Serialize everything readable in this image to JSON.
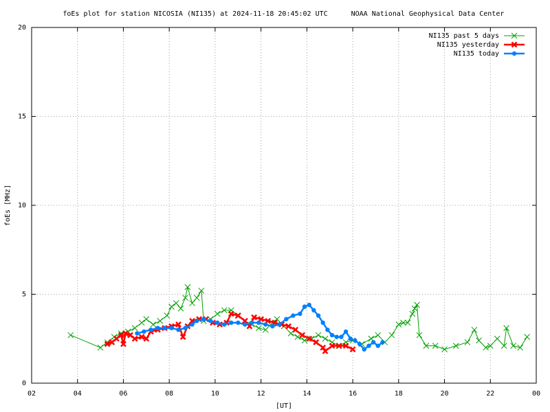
{
  "chart_data": {
    "type": "line",
    "title": "foEs plot for station NICOSIA (NI135) at 2024-11-18 20:45:02 UTC",
    "subtitle": "NOAA National Geophysical Data Center",
    "xlabel": "[UT]",
    "ylabel": "foEs [MHz]",
    "xlim": [
      2,
      24
    ],
    "xticks": [
      {
        "value": 2,
        "label": "02"
      },
      {
        "value": 4,
        "label": "04"
      },
      {
        "value": 6,
        "label": "06"
      },
      {
        "value": 8,
        "label": "08"
      },
      10,
      12,
      14,
      16,
      18,
      20,
      22,
      {
        "value": 24,
        "label": "00"
      }
    ],
    "ylim": [
      0,
      20
    ],
    "yticks": [
      0,
      5,
      10,
      15,
      20
    ],
    "grid": true,
    "legend": "top right",
    "series": [
      {
        "name": "NI135 past 5 days",
        "color": "#00a000",
        "marker": "x",
        "x": [
          3.7,
          5.0,
          5.3,
          5.6,
          5.9,
          6.2,
          6.5,
          6.8,
          7.0,
          7.3,
          7.6,
          7.9,
          8.1,
          8.3,
          8.5,
          8.7,
          8.8,
          9.0,
          9.2,
          9.4,
          9.5,
          9.8,
          10.1,
          10.4,
          10.7,
          11.0,
          11.3,
          11.6,
          11.9,
          12.2,
          12.5,
          12.7,
          13.0,
          13.3,
          13.6,
          13.9,
          14.2,
          14.5,
          14.8,
          15.1,
          15.4,
          15.7,
          16.0,
          16.4,
          16.8,
          17.1,
          17.4,
          17.7,
          18.0,
          18.2,
          18.4,
          18.6,
          18.7,
          18.8,
          18.9,
          19.2,
          19.6,
          20.0,
          20.5,
          21.0,
          21.3,
          21.5,
          21.8,
          22.0,
          22.3,
          22.6,
          22.7,
          23.0,
          23.3,
          23.6
        ],
        "values": [
          2.7,
          2.0,
          2.3,
          2.6,
          2.8,
          2.9,
          3.1,
          3.4,
          3.6,
          3.3,
          3.5,
          3.8,
          4.3,
          4.5,
          4.2,
          4.8,
          5.4,
          4.5,
          4.8,
          5.2,
          3.5,
          3.6,
          3.9,
          4.1,
          4.1,
          3.8,
          3.5,
          3.3,
          3.1,
          3.0,
          3.4,
          3.6,
          3.2,
          2.8,
          2.6,
          2.4,
          2.5,
          2.7,
          2.5,
          2.3,
          2.1,
          2.3,
          2.4,
          2.2,
          2.5,
          2.7,
          2.3,
          2.7,
          3.3,
          3.4,
          3.4,
          3.9,
          4.2,
          4.4,
          2.7,
          2.1,
          2.1,
          1.9,
          2.1,
          2.3,
          3.0,
          2.4,
          2.0,
          2.1,
          2.5,
          2.1,
          3.1,
          2.1,
          2.0,
          2.6
        ]
      },
      {
        "name": "NI135 yesterday",
        "color": "#ff0000",
        "marker": "X",
        "x": [
          5.3,
          5.5,
          5.7,
          5.9,
          6.0,
          6.1,
          6.3,
          6.5,
          6.8,
          7.0,
          7.2,
          7.5,
          7.8,
          8.1,
          8.4,
          8.6,
          8.8,
          9.0,
          9.3,
          9.6,
          9.9,
          10.2,
          10.5,
          10.7,
          11.0,
          11.3,
          11.5,
          11.7,
          12.0,
          12.3,
          12.6,
          12.9,
          13.2,
          13.5,
          13.8,
          14.1,
          14.4,
          14.7,
          14.8,
          15.1,
          15.4,
          15.7,
          16.0
        ],
        "values": [
          2.2,
          2.3,
          2.5,
          2.7,
          2.2,
          2.8,
          2.7,
          2.5,
          2.6,
          2.5,
          2.9,
          3.0,
          3.1,
          3.2,
          3.3,
          2.6,
          3.2,
          3.5,
          3.6,
          3.6,
          3.4,
          3.3,
          3.4,
          3.9,
          3.8,
          3.5,
          3.2,
          3.7,
          3.6,
          3.5,
          3.4,
          3.3,
          3.2,
          3.0,
          2.7,
          2.5,
          2.3,
          2.0,
          1.8,
          2.1,
          2.1,
          2.1,
          1.9
        ]
      },
      {
        "name": "NI135 today",
        "color": "#0080ff",
        "marker": "o",
        "x": [
          6.6,
          6.9,
          7.2,
          7.5,
          7.8,
          8.1,
          8.4,
          8.7,
          9.0,
          9.2,
          9.5,
          9.8,
          10.1,
          10.4,
          10.7,
          11.0,
          11.3,
          11.6,
          11.9,
          12.2,
          12.5,
          12.8,
          13.1,
          13.4,
          13.7,
          13.9,
          14.1,
          14.3,
          14.5,
          14.7,
          14.9,
          15.1,
          15.3,
          15.5,
          15.7,
          15.9,
          16.1,
          16.3,
          16.5,
          16.7,
          16.9,
          17.1,
          17.3
        ],
        "values": [
          2.8,
          2.9,
          3.0,
          3.1,
          3.1,
          3.1,
          3.0,
          3.1,
          3.3,
          3.5,
          3.6,
          3.5,
          3.4,
          3.3,
          3.4,
          3.4,
          3.3,
          3.4,
          3.4,
          3.3,
          3.2,
          3.3,
          3.6,
          3.8,
          3.9,
          4.3,
          4.4,
          4.1,
          3.8,
          3.4,
          3.0,
          2.7,
          2.6,
          2.6,
          2.9,
          2.5,
          2.4,
          2.2,
          1.9,
          2.1,
          2.3,
          2.1,
          2.3
        ]
      }
    ]
  }
}
